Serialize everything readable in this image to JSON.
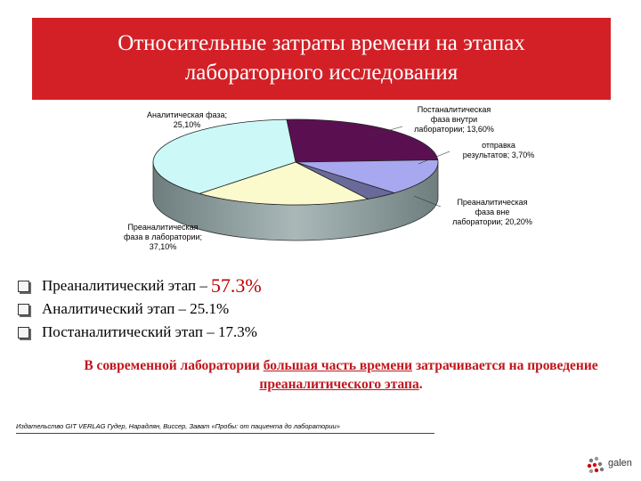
{
  "title": {
    "line1": "Относительные затраты времени на этапах",
    "line2": "лабораторного исследования"
  },
  "chart_data": {
    "type": "pie",
    "categories": [
      "Аналитическая фаза",
      "Постаналитическая фаза внутри лаборатории",
      "отправка результатов",
      "Преаналитическая фаза вне лаборатории",
      "Преаналитическая фаза в лаборатории"
    ],
    "values": [
      25.1,
      13.6,
      3.7,
      20.2,
      37.1
    ],
    "colors": [
      "#5a1050",
      "#a8a8f0",
      "#6a6a9a",
      "#fafacc",
      "#ccf8f8"
    ],
    "labels": [
      {
        "line1": "Аналитическая фаза;",
        "line2": "25,10%"
      },
      {
        "line1": "Постаналитическая",
        "line2": "фаза внутри",
        "line3": "лаборатории; 13,60%"
      },
      {
        "line1": "отправка",
        "line2": "результатов; 3,70%"
      },
      {
        "line1": "Преаналитическая",
        "line2": "фаза вне",
        "line3": "лаборатории; 20,20%"
      },
      {
        "line1": "Преаналитическая",
        "line2": "фаза в лаборатории;",
        "line3": "37,10%"
      }
    ]
  },
  "bullets": [
    {
      "text": "Преаналитический этап – ",
      "value": "57.3%"
    },
    {
      "text": "Аналитический этап – 25.1%"
    },
    {
      "text": "Постаналитический этап – 17.3%"
    }
  ],
  "conclusion": {
    "part1": "В современной лаборатории ",
    "part2": "большая часть времени",
    "part3": " затрачивается на проведение ",
    "part4": "преаналитического этапа",
    "part5": "."
  },
  "source": "Издательство GIT VERLAG Гудер, Нарадлян, Виссер, Зават «Пробы: от пациента до лаборатории»",
  "logo": {
    "text": "galen"
  }
}
